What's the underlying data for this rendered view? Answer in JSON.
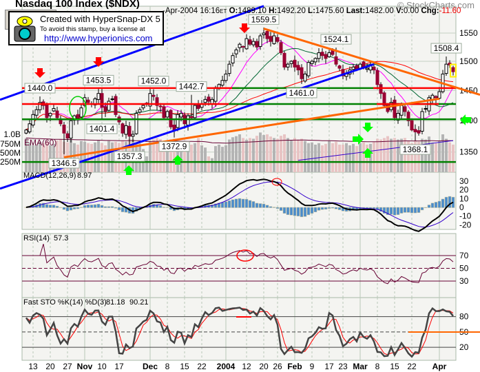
{
  "header": {
    "title": "Nasdaq 100 Index ($NDX)",
    "copyright": "© StockCharts.com",
    "date": "-Apr-2004",
    "time": "16:16",
    "tz": "ET",
    "open_label": "O:",
    "open": "1489.10",
    "high_label": "H:",
    "high": "1492.20",
    "low_label": "L:",
    "low": "1475.60",
    "last_label": "Last:",
    "last": "1482.00",
    "volume_label": "V:",
    "volume": "0.00",
    "change_label": "Chg:",
    "change": "-11.60"
  },
  "stamp": {
    "line1": "Created with HyperSnap-DX 5",
    "line2": "To avoid this stamp, buy a license at",
    "line3": "http://www.hyperionics.com"
  },
  "colors": {
    "up_candle": "#ffffff",
    "down_candle": "#990033",
    "volume_up": "#b4b4b4",
    "volume_down": "#e8c4c4",
    "ma_fast": "#ff00ff",
    "ma_mid": "#006633",
    "ma_slow": "#ff0000",
    "ma_long": "#3300cc",
    "trend_blue": "#0000ff",
    "trend_orange": "#ff6600",
    "level_red": "#ff0000",
    "level_green": "#008000",
    "macd": "#000000",
    "signal": "#3300cc",
    "histogram": "#4a8ccc",
    "rsi": "#660033",
    "sto_k": "#444444",
    "sto_d": "#ff0000"
  },
  "chart_data": {
    "type": "candlestick",
    "scale": "log",
    "price_ticks": [
      "1550",
      "1500",
      "1450",
      "1400",
      "1350"
    ],
    "volume_ticks": [
      "1.0B",
      "750M",
      "500M",
      "250M"
    ],
    "volume_ema_label": "EMA(60)",
    "dates": [
      "2003-10-09",
      "2003-10-10",
      "2003-10-13",
      "2003-10-14",
      "2003-10-15",
      "2003-10-16",
      "2003-10-17",
      "2003-10-20",
      "2003-10-21",
      "2003-10-22",
      "2003-10-23",
      "2003-10-24",
      "2003-10-27",
      "2003-10-28",
      "2003-10-29",
      "2003-10-30",
      "2003-10-31",
      "2003-11-03",
      "2003-11-04",
      "2003-11-05",
      "2003-11-06",
      "2003-11-07",
      "2003-11-10",
      "2003-11-11",
      "2003-11-12",
      "2003-11-13",
      "2003-11-14",
      "2003-11-17",
      "2003-11-18",
      "2003-11-19",
      "2003-11-20",
      "2003-11-21",
      "2003-11-24",
      "2003-11-25",
      "2003-11-26",
      "2003-11-28",
      "2003-12-01",
      "2003-12-02",
      "2003-12-03",
      "2003-12-04",
      "2003-12-05",
      "2003-12-08",
      "2003-12-09",
      "2003-12-10",
      "2003-12-11",
      "2003-12-12",
      "2003-12-15",
      "2003-12-16",
      "2003-12-17",
      "2003-12-18",
      "2003-12-19",
      "2003-12-22",
      "2003-12-23",
      "2003-12-24",
      "2003-12-26",
      "2003-12-29",
      "2003-12-30",
      "2003-12-31",
      "2004-01-02",
      "2004-01-05",
      "2004-01-06",
      "2004-01-07",
      "2004-01-08",
      "2004-01-09",
      "2004-01-12",
      "2004-01-13",
      "2004-01-14",
      "2004-01-15",
      "2004-01-16",
      "2004-01-20",
      "2004-01-21",
      "2004-01-22",
      "2004-01-23",
      "2004-01-26",
      "2004-01-27",
      "2004-01-28",
      "2004-01-29",
      "2004-01-30",
      "2004-02-02",
      "2004-02-03",
      "2004-02-04",
      "2004-02-05",
      "2004-02-06",
      "2004-02-09",
      "2004-02-10",
      "2004-02-11",
      "2004-02-12",
      "2004-02-13",
      "2004-02-17",
      "2004-02-18",
      "2004-02-19",
      "2004-02-20",
      "2004-02-23",
      "2004-02-24",
      "2004-02-25",
      "2004-02-26",
      "2004-02-27",
      "2004-03-01",
      "2004-03-02",
      "2004-03-03",
      "2004-03-04",
      "2004-03-05",
      "2004-03-08",
      "2004-03-09",
      "2004-03-10",
      "2004-03-11",
      "2004-03-12",
      "2004-03-15",
      "2004-03-16",
      "2004-03-17",
      "2004-03-18",
      "2004-03-19",
      "2004-03-22",
      "2004-03-23",
      "2004-03-24",
      "2004-03-25",
      "2004-03-26",
      "2004-03-29",
      "2004-03-30",
      "2004-03-31",
      "2004-04-01",
      "2004-04-02",
      "2004-04-05",
      "2004-04-06",
      "2004-04-07"
    ],
    "close": [
      1385,
      1395,
      1410,
      1418,
      1430,
      1425,
      1405,
      1412,
      1420,
      1405,
      1395,
      1380,
      1372,
      1400,
      1408,
      1403,
      1421,
      1438,
      1430,
      1428,
      1436,
      1445,
      1422,
      1415,
      1432,
      1436,
      1410,
      1398,
      1380,
      1392,
      1375,
      1378,
      1412,
      1418,
      1425,
      1428,
      1445,
      1440,
      1425,
      1423,
      1405,
      1415,
      1390,
      1385,
      1410,
      1412,
      1395,
      1408,
      1405,
      1425,
      1420,
      1427,
      1435,
      1432,
      1435,
      1455,
      1460,
      1467,
      1478,
      1495,
      1510,
      1520,
      1530,
      1525,
      1540,
      1530,
      1535,
      1525,
      1545,
      1550,
      1540,
      1535,
      1545,
      1535,
      1515,
      1490,
      1495,
      1500,
      1490,
      1485,
      1470,
      1478,
      1498,
      1500,
      1505,
      1515,
      1510,
      1505,
      1515,
      1512,
      1495,
      1488,
      1475,
      1478,
      1485,
      1490,
      1485,
      1495,
      1490,
      1488,
      1492,
      1485,
      1460,
      1445,
      1425,
      1415,
      1430,
      1405,
      1412,
      1425,
      1415,
      1400,
      1385,
      1382,
      1380,
      1415,
      1420,
      1438,
      1442,
      1438,
      1448,
      1478,
      1495,
      1493.6,
      1482
    ],
    "volume_millions": [
      900,
      780,
      700,
      720,
      800,
      760,
      820,
      700,
      740,
      830,
      860,
      800,
      780,
      870,
      760,
      720,
      820,
      800,
      760,
      740,
      780,
      850,
      760,
      700,
      820,
      780,
      800,
      760,
      820,
      800,
      880,
      860,
      780,
      750,
      600,
      400,
      820,
      860,
      900,
      870,
      780,
      800,
      860,
      880,
      780,
      740,
      800,
      760,
      720,
      760,
      900,
      700,
      640,
      400,
      350,
      680,
      720,
      660,
      700,
      860,
      920,
      950,
      1000,
      900,
      850,
      900,
      880,
      960,
      1050,
      980,
      1000,
      940,
      900,
      880,
      960,
      1000,
      900,
      850,
      900,
      860,
      880,
      820,
      760,
      780,
      720,
      760,
      700,
      740,
      820,
      760,
      800,
      720,
      720,
      760,
      700,
      740,
      680,
      760,
      780,
      720,
      740,
      800,
      880,
      860,
      900,
      950,
      880,
      900,
      860,
      880,
      900,
      820,
      760,
      840,
      800,
      880,
      860,
      940,
      780,
      760,
      820,
      1000,
      880,
      780,
      720
    ],
    "moving_averages": [
      10,
      20,
      50
    ],
    "long_ma": [
      {
        "date": "2004-02-03",
        "price": 1337
      },
      {
        "date": "2004-04-07",
        "price": 1368
      }
    ],
    "x_ticks": [
      {
        "label": "13",
        "date": "2003-10-13",
        "month": false
      },
      {
        "label": "20",
        "date": "2003-10-20",
        "month": false
      },
      {
        "label": "27",
        "date": "2003-10-27",
        "month": false
      },
      {
        "label": "Nov",
        "date": "2003-11-03",
        "month": true
      },
      {
        "label": "10",
        "date": "2003-11-10",
        "month": false
      },
      {
        "label": "17",
        "date": "2003-11-17",
        "month": false
      },
      {
        "label": "Dec",
        "date": "2003-12-01",
        "month": true
      },
      {
        "label": "8",
        "date": "2003-12-08",
        "month": false
      },
      {
        "label": "15",
        "date": "2003-12-15",
        "month": false
      },
      {
        "label": "22",
        "date": "2003-12-22",
        "month": false
      },
      {
        "label": "2004",
        "date": "2004-01-02",
        "month": true
      },
      {
        "label": "12",
        "date": "2004-01-12",
        "month": false
      },
      {
        "label": "20",
        "date": "2004-01-20",
        "month": false
      },
      {
        "label": "26",
        "date": "2004-01-26",
        "month": false
      },
      {
        "label": "Feb",
        "date": "2004-02-02",
        "month": true
      },
      {
        "label": "9",
        "date": "2004-02-09",
        "month": false
      },
      {
        "label": "17",
        "date": "2004-02-17",
        "month": false
      },
      {
        "label": "23",
        "date": "2004-02-23",
        "month": false
      },
      {
        "label": "Mar",
        "date": "2004-03-01",
        "month": true
      },
      {
        "label": "8",
        "date": "2004-03-08",
        "month": false
      },
      {
        "label": "15",
        "date": "2004-03-15",
        "month": false
      },
      {
        "label": "22",
        "date": "2004-03-22",
        "month": false
      },
      {
        "label": "Apr",
        "date": "2004-04-01",
        "month": true
      }
    ],
    "callouts": [
      {
        "text": "1440.0",
        "date": "2003-10-15",
        "price": 1440.0,
        "position": "above"
      },
      {
        "text": "1453.5",
        "date": "2003-11-07",
        "price": 1453.5,
        "position": "above"
      },
      {
        "text": "1452.0",
        "date": "2003-12-02",
        "price": 1452.0,
        "position": "above"
      },
      {
        "text": "1442.7",
        "date": "2003-12-17",
        "price": 1442.7,
        "position": "above"
      },
      {
        "text": "1559.5",
        "date": "2004-01-20",
        "price": 1559.5,
        "position": "above"
      },
      {
        "text": "1524.1",
        "date": "2004-02-19",
        "price": 1524.1,
        "position": "above"
      },
      {
        "text": "1508.4",
        "date": "2004-04-05",
        "price": 1508.4,
        "position": "above"
      },
      {
        "text": "1401.4",
        "date": "2003-11-10",
        "price": 1401.4,
        "position": "below"
      },
      {
        "text": "1346.5",
        "date": "2003-10-24",
        "price": 1346.5,
        "position": "below"
      },
      {
        "text": "1357.3",
        "date": "2003-11-20",
        "price": 1357.3,
        "position": "below"
      },
      {
        "text": "1372.9",
        "date": "2003-12-10",
        "price": 1372.9,
        "position": "below"
      },
      {
        "text": "1461.0",
        "date": "2004-02-04",
        "price": 1461.0,
        "position": "below"
      },
      {
        "text": "1368.1",
        "date": "2004-03-23",
        "price": 1368.1,
        "position": "below"
      }
    ],
    "trendlines": [
      {
        "name": "upper-blue-channel",
        "color": "blue",
        "from": {
          "date": "2003-10-09",
          "price": 1450
        },
        "to": {
          "date": "2004-01-20",
          "price": 1599.5
        },
        "extend": "left"
      },
      {
        "name": "lower-blue-channel",
        "color": "blue",
        "from": {
          "date": "2003-10-09",
          "price": 1307
        },
        "to": {
          "date": "2004-03-05",
          "price": 1495
        },
        "extend": "left"
      },
      {
        "name": "orange-downtrend",
        "color": "orange",
        "from": {
          "date": "2004-01-20",
          "price": 1558
        },
        "to": {
          "date": "2004-04-07",
          "price": 1456.6
        },
        "extend": "right"
      },
      {
        "name": "orange-uptrend",
        "color": "orange",
        "from": {
          "date": "2003-10-24",
          "price": 1341.8
        },
        "to": {
          "date": "2004-04-01",
          "price": 1436.2
        },
        "extend": "none"
      }
    ],
    "levels": [
      {
        "price": 1454,
        "segments": [
          {
            "from": "2003-10-09",
            "to": "2004-01-07",
            "color": "red"
          },
          {
            "from": "2004-01-07",
            "to": "2004-03-08",
            "color": "green"
          },
          {
            "from": "2004-03-08",
            "to": "2004-04-07",
            "color": "red"
          }
        ]
      },
      {
        "price": 1427.4,
        "segments": [
          {
            "from": "2003-10-09",
            "to": "2004-01-06",
            "color": "red"
          },
          {
            "from": "2004-01-06",
            "to": "2004-04-07",
            "color": "green"
          },
          {
            "from": "2004-03-09",
            "to": "2004-03-31",
            "color": "red"
          }
        ]
      },
      {
        "price": 1402.4,
        "segments": [
          {
            "from": "2003-10-09",
            "to": "2004-04-07",
            "color": "green"
          }
        ]
      },
      {
        "price": 1334.5,
        "segments": [
          {
            "from": "2003-10-09",
            "to": "2004-04-07",
            "color": "green"
          }
        ]
      }
    ],
    "macd": {
      "label": "MACD(12,26,9)",
      "value": "8.97",
      "fast": 12,
      "slow": 26,
      "signal": 9,
      "ticks": [
        "30",
        "20",
        "10",
        "0",
        "-10",
        "-20"
      ]
    },
    "rsi": {
      "label": "RSI(14)",
      "value": "57.3",
      "period": 14,
      "ticks": [
        "70",
        "50",
        "30"
      ]
    },
    "stochastic": {
      "label": "Fast STO %K(14) %D(3)",
      "k_value": "81.18",
      "d_value": "90.21",
      "k_period": 14,
      "d_period": 3,
      "ticks": [
        "80",
        "50",
        "20"
      ]
    }
  }
}
